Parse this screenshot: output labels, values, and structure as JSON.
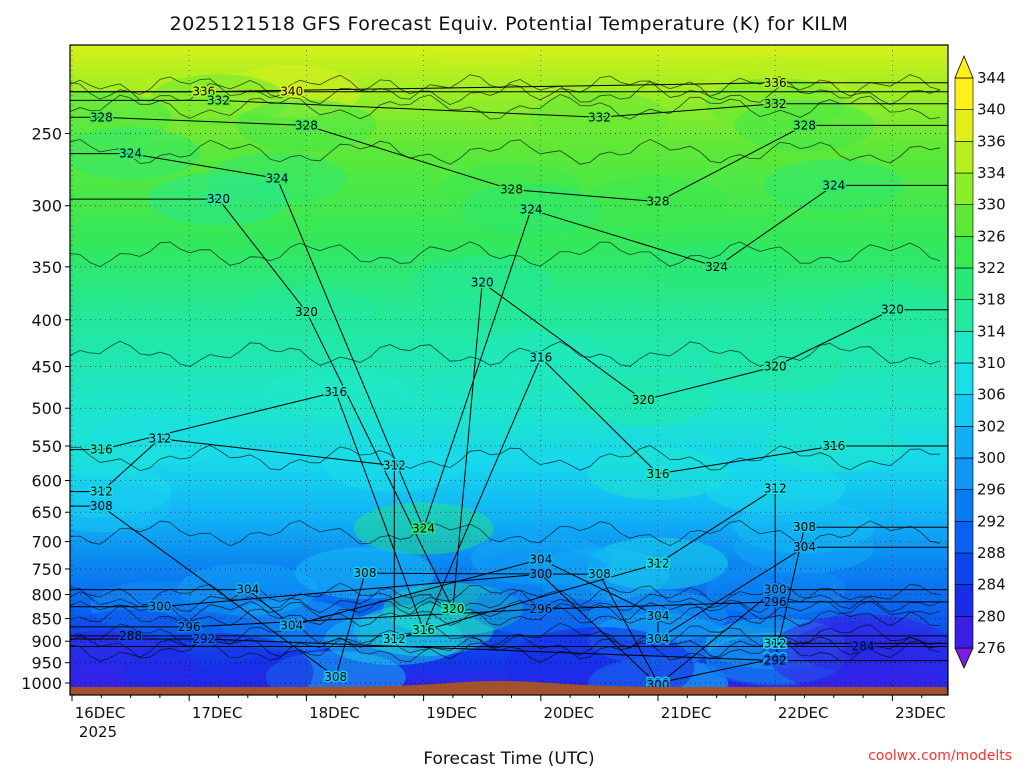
{
  "chart_data": {
    "type": "heatmap",
    "title": "2025121518 GFS Forecast Equiv. Potential Temperature (K) for KILM",
    "xlabel": "Forecast Time (UTC)",
    "ylabel": "",
    "credit": "coolwx.com/modelts",
    "x_ticks": [
      "16DEC",
      "17DEC",
      "18DEC",
      "19DEC",
      "20DEC",
      "21DEC",
      "22DEC",
      "23DEC"
    ],
    "x_year_label": "2025",
    "y_ticks": [
      250,
      300,
      350,
      400,
      450,
      500,
      550,
      600,
      650,
      700,
      750,
      800,
      850,
      900,
      950,
      1000
    ],
    "y_axis_reversed": true,
    "colorbar": {
      "levels": [
        276,
        280,
        284,
        288,
        292,
        296,
        300,
        302,
        306,
        310,
        314,
        318,
        322,
        326,
        330,
        334,
        336,
        340,
        344
      ],
      "colors": [
        "#7a1fe0",
        "#3a1fe8",
        "#1a2ce8",
        "#0d44ec",
        "#0a60f0",
        "#0a7cf2",
        "#1095f4",
        "#12aef6",
        "#18c8f4",
        "#1adfe6",
        "#1ee8c8",
        "#22e8a0",
        "#28e878",
        "#3ae850",
        "#5ee838",
        "#8aee28",
        "#b6f01e",
        "#e2f01a",
        "#fff01a"
      ]
    },
    "contour_labels": [
      {
        "value": 340,
        "time": "17DEC 21Z",
        "pressure": 225
      },
      {
        "value": 336,
        "time": "17DEC 03Z",
        "pressure": 225
      },
      {
        "value": 336,
        "time": "22DEC 00Z",
        "pressure": 220
      },
      {
        "value": 332,
        "time": "17DEC 06Z",
        "pressure": 230
      },
      {
        "value": 332,
        "time": "20DEC 12Z",
        "pressure": 240
      },
      {
        "value": 332,
        "time": "22DEC 00Z",
        "pressure": 232
      },
      {
        "value": 328,
        "time": "16DEC 06Z",
        "pressure": 240
      },
      {
        "value": 328,
        "time": "18DEC 00Z",
        "pressure": 245
      },
      {
        "value": 328,
        "time": "19DEC 18Z",
        "pressure": 288
      },
      {
        "value": 328,
        "time": "21DEC 00Z",
        "pressure": 297
      },
      {
        "value": 328,
        "time": "22DEC 06Z",
        "pressure": 245
      },
      {
        "value": 324,
        "time": "16DEC 12Z",
        "pressure": 263
      },
      {
        "value": 324,
        "time": "17DEC 18Z",
        "pressure": 280
      },
      {
        "value": 324,
        "time": "19DEC 22Z",
        "pressure": 303
      },
      {
        "value": 324,
        "time": "21DEC 12Z",
        "pressure": 350
      },
      {
        "value": 324,
        "time": "22DEC 12Z",
        "pressure": 285
      },
      {
        "value": 324,
        "time": "19DEC 00Z",
        "pressure": 677
      },
      {
        "value": 320,
        "time": "17DEC 06Z",
        "pressure": 295
      },
      {
        "value": 320,
        "time": "18DEC 00Z",
        "pressure": 392
      },
      {
        "value": 320,
        "time": "19DEC 12Z",
        "pressure": 364
      },
      {
        "value": 320,
        "time": "20DEC 21Z",
        "pressure": 490
      },
      {
        "value": 320,
        "time": "22DEC 00Z",
        "pressure": 450
      },
      {
        "value": 320,
        "time": "23DEC 00Z",
        "pressure": 390
      },
      {
        "value": 320,
        "time": "19DEC 06Z",
        "pressure": 830
      },
      {
        "value": 316,
        "time": "16DEC 06Z",
        "pressure": 555
      },
      {
        "value": 316,
        "time": "18DEC 06Z",
        "pressure": 480
      },
      {
        "value": 316,
        "time": "20DEC 00Z",
        "pressure": 440
      },
      {
        "value": 316,
        "time": "21DEC 00Z",
        "pressure": 590
      },
      {
        "value": 316,
        "time": "22DEC 12Z",
        "pressure": 550
      },
      {
        "value": 316,
        "time": "19DEC 00Z",
        "pressure": 875
      },
      {
        "value": 312,
        "time": "16DEC 18Z",
        "pressure": 540
      },
      {
        "value": 312,
        "time": "16DEC 06Z",
        "pressure": 617
      },
      {
        "value": 312,
        "time": "18DEC 18Z",
        "pressure": 578
      },
      {
        "value": 312,
        "time": "22DEC 00Z",
        "pressure": 612
      },
      {
        "value": 312,
        "time": "21DEC 00Z",
        "pressure": 740
      },
      {
        "value": 312,
        "time": "18DEC 18Z",
        "pressure": 895
      },
      {
        "value": 312,
        "time": "22DEC 00Z",
        "pressure": 905
      },
      {
        "value": 308,
        "time": "16DEC 06Z",
        "pressure": 640
      },
      {
        "value": 308,
        "time": "22DEC 06Z",
        "pressure": 675
      },
      {
        "value": 308,
        "time": "18DEC 12Z",
        "pressure": 758
      },
      {
        "value": 308,
        "time": "20DEC 12Z",
        "pressure": 760
      },
      {
        "value": 308,
        "time": "18DEC 06Z",
        "pressure": 985
      },
      {
        "value": 308,
        "time": "22DEC 00Z",
        "pressure": 940
      },
      {
        "value": 308,
        "time": "21DEC 00Z",
        "pressure": 1000
      },
      {
        "value": 304,
        "time": "17DEC 12Z",
        "pressure": 790
      },
      {
        "value": 304,
        "time": "20DEC 00Z",
        "pressure": 732
      },
      {
        "value": 304,
        "time": "22DEC 06Z",
        "pressure": 710
      },
      {
        "value": 304,
        "time": "17DEC 21Z",
        "pressure": 865
      },
      {
        "value": 304,
        "time": "21DEC 00Z",
        "pressure": 845
      },
      {
        "value": 304,
        "time": "21DEC 00Z",
        "pressure": 895
      },
      {
        "value": 300,
        "time": "16DEC 18Z",
        "pressure": 825
      },
      {
        "value": 300,
        "time": "20DEC 00Z",
        "pressure": 760
      },
      {
        "value": 300,
        "time": "22DEC 00Z",
        "pressure": 790
      },
      {
        "value": 300,
        "time": "21DEC 00Z",
        "pressure": 1005
      },
      {
        "value": 296,
        "time": "17DEC 00Z",
        "pressure": 868
      },
      {
        "value": 296,
        "time": "20DEC 00Z",
        "pressure": 830
      },
      {
        "value": 296,
        "time": "22DEC 00Z",
        "pressure": 815
      },
      {
        "value": 292,
        "time": "17DEC 03Z",
        "pressure": 895
      },
      {
        "value": 292,
        "time": "22DEC 00Z",
        "pressure": 945
      },
      {
        "value": 288,
        "time": "16DEC 12Z",
        "pressure": 888
      },
      {
        "value": 284,
        "time": "22DEC 18Z",
        "pressure": 912
      }
    ]
  }
}
